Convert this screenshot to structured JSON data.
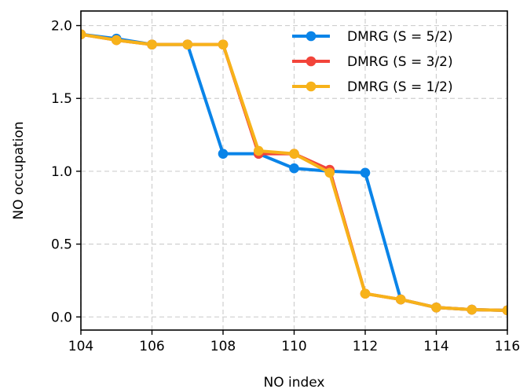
{
  "chart_data": {
    "type": "line",
    "xlabel": "NO index",
    "ylabel": "NO occupation",
    "xlim": [
      104,
      116
    ],
    "ylim": [
      -0.09,
      2.1
    ],
    "xticks": [
      "104",
      "106",
      "108",
      "110",
      "112",
      "114",
      "116"
    ],
    "yticks": [
      "0.0",
      "0.5",
      "1.0",
      "1.5",
      "2.0"
    ],
    "grid": true,
    "legend_position": "top-right",
    "series": [
      {
        "name": "DMRG (S = 5/2)",
        "color": "#0a84e8",
        "x": [
          104,
          105,
          106,
          107,
          108,
          109,
          110,
          111,
          112,
          113,
          114,
          115,
          116
        ],
        "y": [
          1.94,
          1.91,
          1.87,
          1.87,
          1.12,
          1.12,
          1.02,
          1.0,
          0.99,
          0.12,
          0.065,
          0.05,
          0.045
        ]
      },
      {
        "name": "DMRG (S = 3/2)",
        "color": "#f2443a",
        "x": [
          104,
          105,
          106,
          107,
          108,
          109,
          110,
          111,
          112,
          113,
          114,
          115,
          116
        ],
        "y": [
          1.94,
          1.9,
          1.87,
          1.87,
          1.87,
          1.12,
          1.12,
          1.01,
          0.16,
          0.12,
          0.065,
          0.05,
          0.045
        ]
      },
      {
        "name": "DMRG (S = 1/2)",
        "color": "#f7b21a",
        "x": [
          104,
          105,
          106,
          107,
          108,
          109,
          110,
          111,
          112,
          113,
          114,
          115,
          116
        ],
        "y": [
          1.94,
          1.9,
          1.87,
          1.87,
          1.87,
          1.14,
          1.12,
          0.99,
          0.16,
          0.12,
          0.065,
          0.05,
          0.045
        ]
      }
    ]
  }
}
